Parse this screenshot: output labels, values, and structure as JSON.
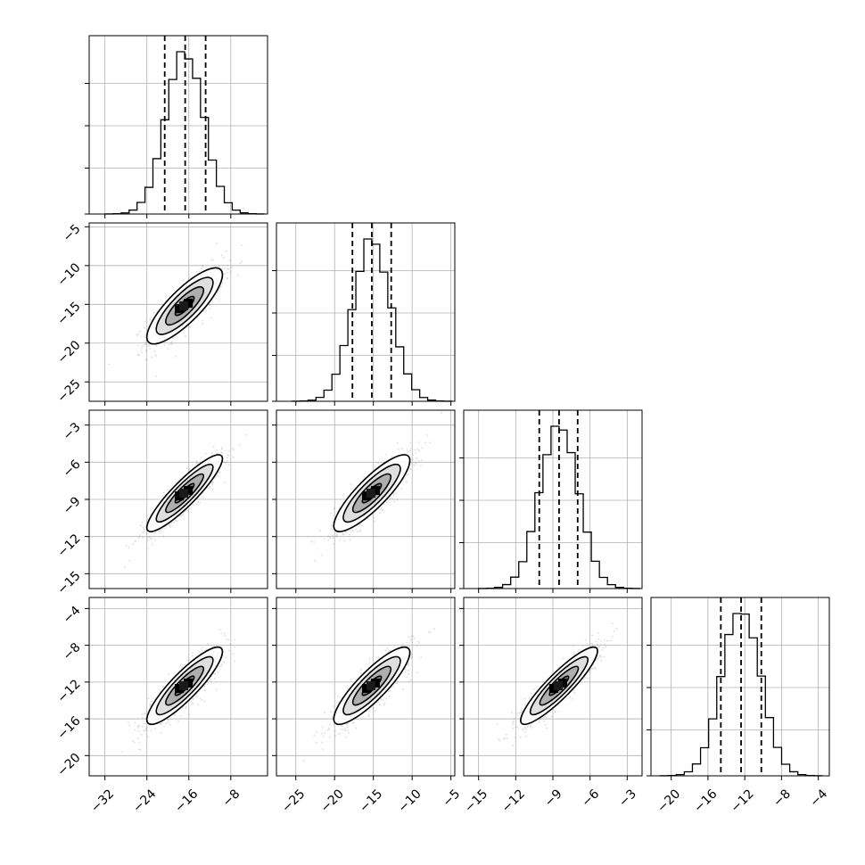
{
  "chart_data": {
    "type": "corner",
    "parameters": [
      {
        "label": "",
        "range": [
          -35,
          -1
        ],
        "mean": -16.8,
        "std": 3.6,
        "quantiles": [
          -20.6,
          -16.7,
          -12.8
        ],
        "ticks": [
          -32,
          -24,
          -16,
          -8
        ]
      },
      {
        "label": "",
        "range": [
          -27.5,
          -4.5
        ],
        "mean": -15.2,
        "std": 2.45,
        "quantiles": [
          -17.7,
          -15.2,
          -12.7
        ],
        "ticks": [
          -25,
          -20,
          -15,
          -10,
          -5
        ]
      },
      {
        "label": "",
        "range": [
          -16.2,
          -1.8
        ],
        "mean": -8.5,
        "std": 1.55,
        "quantiles": [
          -10.1,
          -8.5,
          -7.0
        ],
        "ticks": [
          -15,
          -12,
          -9,
          -6,
          -3
        ]
      },
      {
        "label": "",
        "range": [
          -22.2,
          -2.8
        ],
        "mean": -12.4,
        "std": 2.1,
        "quantiles": [
          -14.6,
          -12.4,
          -10.2
        ],
        "ticks": [
          -20,
          -16,
          -12,
          -8,
          -4
        ]
      }
    ],
    "y_ticks": {
      "1": [
        -25,
        -20,
        -15,
        -10,
        -5
      ],
      "2": [
        -15,
        -12,
        -9,
        -6,
        -3
      ],
      "3": [
        -20,
        -16,
        -12,
        -8,
        -4
      ]
    },
    "correlations": {
      "1-0": 0.82,
      "2-0": 0.9,
      "2-1": 0.85,
      "3-0": 0.88,
      "3-1": 0.86,
      "3-2": 0.9
    },
    "histogram_bins": 20,
    "contour_sigmas": [
      0.5,
      1.0,
      1.5,
      2.0
    ],
    "grid": true
  }
}
